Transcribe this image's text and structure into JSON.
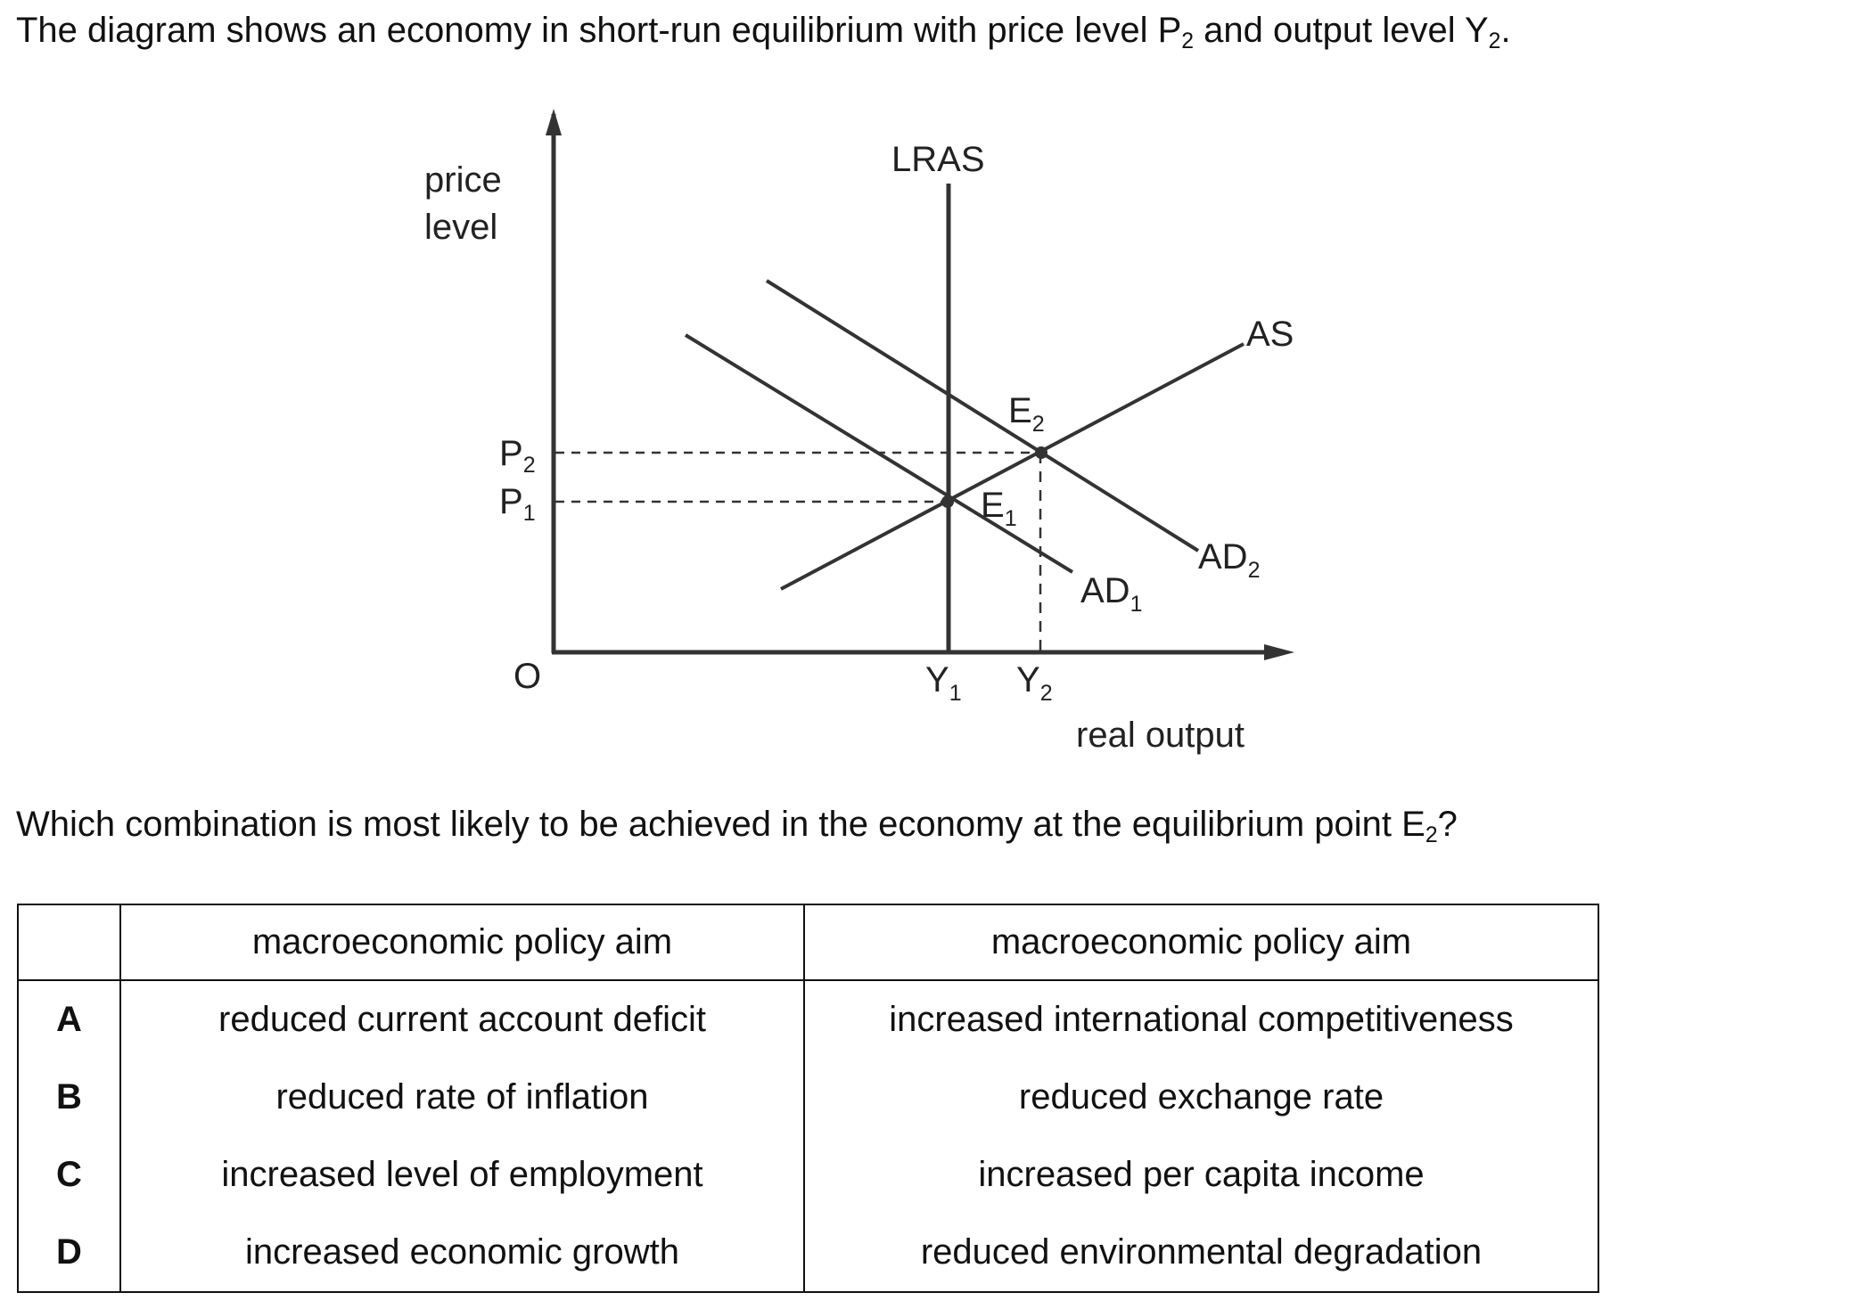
{
  "intro": {
    "text_before_p": "The diagram shows an economy in short-run equilibrium with price level P",
    "p_sub": "2",
    "text_middle": " and output level Y",
    "y_sub": "2",
    "text_end": "."
  },
  "diagram": {
    "y_axis_label_line1": "price",
    "y_axis_label_line2": "level",
    "x_axis_label": "real output",
    "origin_label": "O",
    "lras_label": "LRAS",
    "as_label": "AS",
    "ad1": {
      "main": "AD",
      "sub": "1"
    },
    "ad2": {
      "main": "AD",
      "sub": "2"
    },
    "e1": {
      "main": "E",
      "sub": "1"
    },
    "e2": {
      "main": "E",
      "sub": "2"
    },
    "p1": {
      "main": "P",
      "sub": "1"
    },
    "p2": {
      "main": "P",
      "sub": "2"
    },
    "y1": {
      "main": "Y",
      "sub": "1"
    },
    "y2": {
      "main": "Y",
      "sub": "2"
    }
  },
  "question": {
    "text_before": "Which combination is most likely to be achieved in the economy at the equilibrium point E",
    "sub": "2",
    "text_after": "?"
  },
  "table": {
    "headers": [
      "",
      "macroeconomic policy aim",
      "macroeconomic policy aim"
    ],
    "rows": [
      {
        "letter": "A",
        "aim1": "reduced current account deficit",
        "aim2": "increased international competitiveness"
      },
      {
        "letter": "B",
        "aim1": "reduced rate of inflation",
        "aim2": "reduced exchange rate"
      },
      {
        "letter": "C",
        "aim1": "increased level of employment",
        "aim2": "increased per capita income"
      },
      {
        "letter": "D",
        "aim1": "increased economic growth",
        "aim2": "reduced environmental degradation"
      }
    ]
  }
}
